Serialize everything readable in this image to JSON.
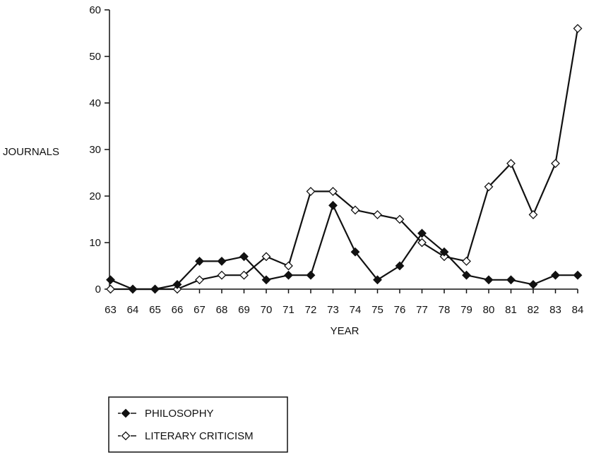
{
  "chart_data": {
    "type": "line",
    "title": "",
    "xlabel": "YEAR",
    "ylabel": "JOURNALS",
    "ylim": [
      0,
      60
    ],
    "yticks": [
      0,
      10,
      20,
      30,
      40,
      50,
      60
    ],
    "categories": [
      "63",
      "64",
      "65",
      "66",
      "67",
      "68",
      "69",
      "70",
      "71",
      "72",
      "73",
      "74",
      "75",
      "76",
      "77",
      "78",
      "79",
      "80",
      "81",
      "82",
      "83",
      "84"
    ],
    "series": [
      {
        "name": "PHILOSOPHY",
        "marker": "filled-diamond",
        "values": [
          2,
          0,
          0,
          1,
          6,
          6,
          7,
          2,
          3,
          3,
          18,
          8,
          2,
          5,
          12,
          8,
          3,
          2,
          2,
          1,
          3,
          3
        ]
      },
      {
        "name": "LITERARY CRITICISM",
        "marker": "open-diamond",
        "values": [
          0,
          0,
          0,
          0,
          2,
          3,
          3,
          7,
          5,
          21,
          21,
          17,
          16,
          15,
          10,
          7,
          6,
          22,
          27,
          16,
          27,
          56
        ]
      }
    ],
    "grid": false,
    "legend_position": "bottom-left"
  }
}
